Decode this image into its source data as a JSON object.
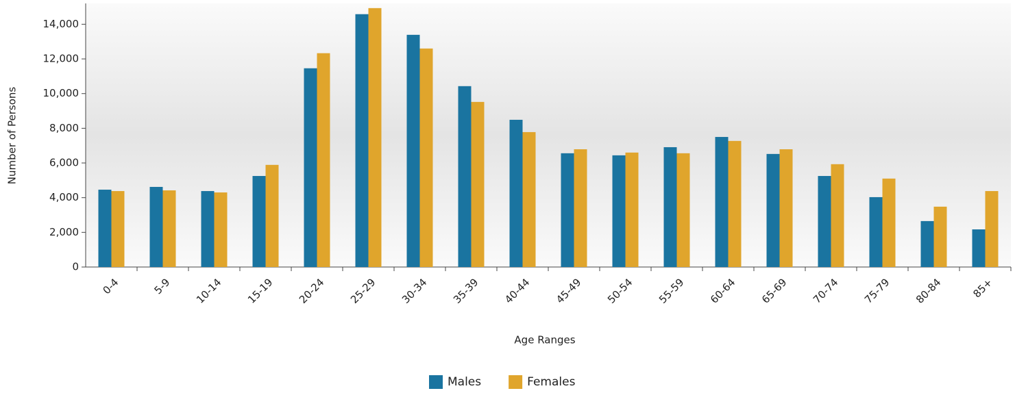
{
  "chart_data": {
    "type": "bar",
    "x_label": "Age Ranges",
    "y_label": "Number of Persons",
    "categories": [
      "0-4",
      "5-9",
      "10-14",
      "15-19",
      "20-24",
      "25-29",
      "30-34",
      "35-39",
      "40-44",
      "45-49",
      "50-54",
      "55-59",
      "60-64",
      "65-69",
      "70-74",
      "75-79",
      "80-84",
      "85+"
    ],
    "series": [
      {
        "name": "Males",
        "color": "#1a74a0",
        "values": [
          4460,
          4620,
          4380,
          5250,
          11460,
          14580,
          13390,
          10430,
          8490,
          6560,
          6440,
          6910,
          7500,
          6520,
          5250,
          4030,
          2650,
          2170
        ]
      },
      {
        "name": "Females",
        "color": "#e0a52c",
        "values": [
          4380,
          4420,
          4300,
          5890,
          12330,
          14930,
          12600,
          9520,
          7780,
          6790,
          6600,
          6560,
          7270,
          6790,
          5930,
          5100,
          3480,
          4380
        ]
      }
    ],
    "ylim": [
      0,
      15200
    ],
    "yticks": [
      0,
      {
        "value": 2000,
        "label": "2,000"
      },
      {
        "value": 4000,
        "label": "4,000"
      },
      {
        "value": 6000,
        "label": "6,000"
      },
      {
        "value": 8000,
        "label": "8,000"
      },
      {
        "value": 10000,
        "label": "10,000"
      },
      {
        "value": 12000,
        "label": "12,000"
      },
      {
        "value": 14000,
        "label": "14,000"
      }
    ],
    "grid": false,
    "legend": "bottom"
  }
}
